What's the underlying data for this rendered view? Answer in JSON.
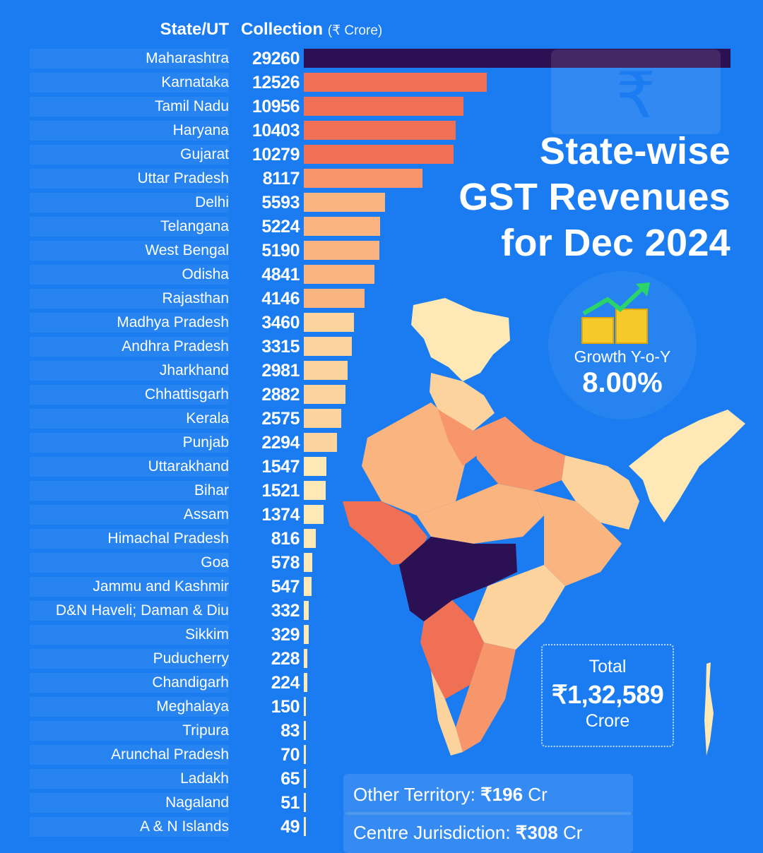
{
  "title": {
    "line1": "State-wise",
    "line2": "GST Revenues",
    "line3": "for Dec 2024"
  },
  "chart_data": {
    "type": "bar",
    "orientation": "horizontal",
    "column_headers": {
      "category": "State/UT",
      "value": "Collection",
      "unit": "(₹ Crore)"
    },
    "categories": [
      "Maharashtra",
      "Karnataka",
      "Tamil Nadu",
      "Haryana",
      "Gujarat",
      "Uttar Pradesh",
      "Delhi",
      "Telangana",
      "West Bengal",
      "Odisha",
      "Rajasthan",
      "Madhya Pradesh",
      "Andhra Pradesh",
      "Jharkhand",
      "Chhattisgarh",
      "Kerala",
      "Punjab",
      "Uttarakhand",
      "Bihar",
      "Assam",
      "Himachal Pradesh",
      "Goa",
      "Jammu and Kashmir",
      "D&N Haveli; Daman & Diu",
      "Sikkim",
      "Puducherry",
      "Chandigarh",
      "Meghalaya",
      "Tripura",
      "Arunchal Pradesh",
      "Ladakh",
      "Nagaland",
      "A & N Islands"
    ],
    "values": [
      29260,
      12526,
      10956,
      10403,
      10279,
      8117,
      5593,
      5224,
      5190,
      4841,
      4146,
      3460,
      3315,
      2981,
      2882,
      2575,
      2294,
      1547,
      1521,
      1374,
      816,
      578,
      547,
      332,
      329,
      228,
      224,
      150,
      83,
      70,
      65,
      51,
      49
    ],
    "value_labels": [
      "29260",
      "12526",
      "10956",
      "10403",
      "10279",
      "8117",
      "5593",
      "5224",
      "5190",
      "4841",
      "4146",
      "3460",
      "3315",
      "2981",
      "2882",
      "2575",
      "2294",
      "1547",
      "1521",
      "1374",
      "816",
      "578",
      "547",
      "332",
      "329",
      "228",
      "224",
      "150",
      "83",
      "70",
      "65",
      "51",
      "49"
    ],
    "xlim": [
      0,
      29260
    ],
    "colors": {
      "highest": "#2c1054",
      "high": "#f07055",
      "mid_high": "#f6966a",
      "mid": "#f9b47f",
      "low": "#fcd39d",
      "lowest": "#fde8b6"
    }
  },
  "growth": {
    "label": "Growth Y-o-Y",
    "value": "8.00%"
  },
  "total": {
    "label": "Total",
    "value": "₹1,32,589",
    "unit": "Crore"
  },
  "footer": {
    "other_territory_label": "Other Territory:",
    "other_territory_value": "₹196",
    "other_territory_unit": "Cr",
    "centre_label": "Centre Jurisdiction:",
    "centre_value": "₹308",
    "centre_unit": "Cr"
  },
  "icons": {
    "growth": "growth-chart-icon",
    "map": "india-map-icon",
    "rupee": "rupee-watermark-icon"
  },
  "theme": {
    "background": "#1a7cf0",
    "text": "#ffffff"
  }
}
